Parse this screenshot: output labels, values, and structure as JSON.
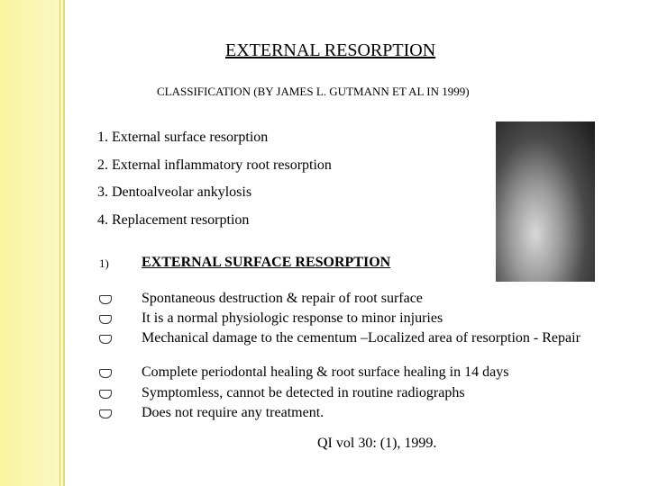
{
  "title": "EXTERNAL RESORPTION",
  "subtitle": "CLASSIFICATION (BY JAMES L. GUTMANN ET AL IN 1999)",
  "classification": [
    "1. External surface resorption",
    "2. External inflammatory root resorption",
    "3. Dentoalveolar ankylosis",
    "4. Replacement resorption"
  ],
  "section": {
    "number": "1)",
    "heading": "EXTERNAL SURFACE RESORPTION"
  },
  "points": [
    "Spontaneous destruction & repair of root surface",
    "It is a normal physiologic response to minor injuries",
    "Mechanical damage to the cementum –Localized area of resorption - Repair",
    "Complete periodontal healing & root surface healing in 14 days",
    "Symptomless, cannot be detected in routine radiographs",
    "Does not require any treatment."
  ],
  "citation": "QI vol 30: (1), 1999."
}
